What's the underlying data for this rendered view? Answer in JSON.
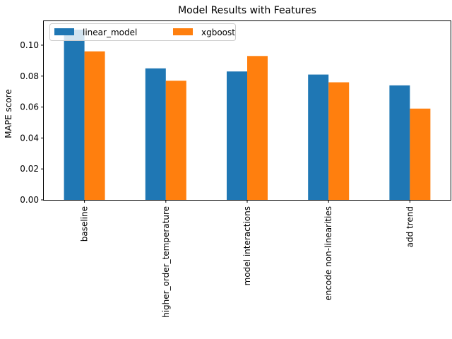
{
  "chart_data": {
    "type": "bar",
    "title": "Model Results with Features",
    "xlabel": "",
    "ylabel": "MAPE score",
    "categories": [
      "baseline",
      "higher_order_temperature",
      "model interactions",
      "encode non-linearities",
      "add trend"
    ],
    "series": [
      {
        "name": "linear_model",
        "color": "#1f77b4",
        "values": [
          0.11,
          0.085,
          0.083,
          0.081,
          0.074
        ]
      },
      {
        "name": "xgboost",
        "color": "#ff7f0e",
        "values": [
          0.096,
          0.077,
          0.093,
          0.076,
          0.059
        ]
      }
    ],
    "ylim": [
      0,
      0.1155
    ],
    "yticks": [
      "0.00",
      "0.02",
      "0.04",
      "0.06",
      "0.08",
      "0.10"
    ],
    "grid": false,
    "legend_position": "upper-left"
  }
}
